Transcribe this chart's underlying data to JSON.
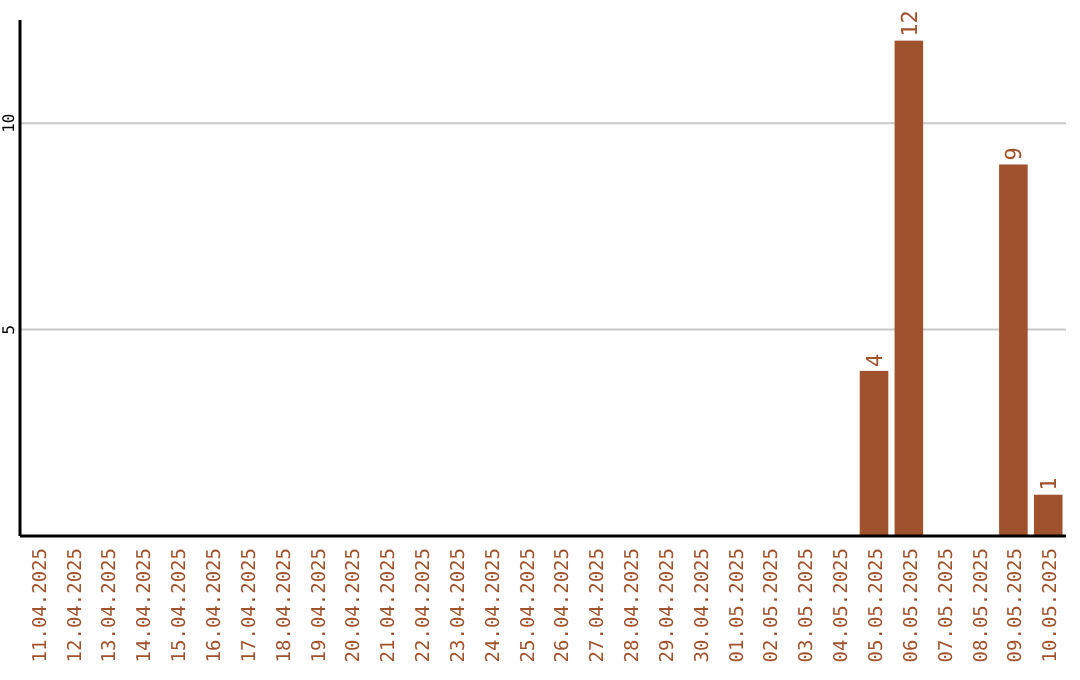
{
  "chart_data": {
    "type": "bar",
    "categories": [
      "11.04.2025",
      "12.04.2025",
      "13.04.2025",
      "14.04.2025",
      "15.04.2025",
      "16.04.2025",
      "17.04.2025",
      "18.04.2025",
      "19.04.2025",
      "20.04.2025",
      "21.04.2025",
      "22.04.2025",
      "23.04.2025",
      "24.04.2025",
      "25.04.2025",
      "26.04.2025",
      "27.04.2025",
      "28.04.2025",
      "29.04.2025",
      "30.04.2025",
      "01.05.2025",
      "02.05.2025",
      "03.05.2025",
      "04.05.2025",
      "05.05.2025",
      "06.05.2025",
      "07.05.2025",
      "08.05.2025",
      "09.05.2025",
      "10.05.2025"
    ],
    "values": [
      0,
      0,
      0,
      0,
      0,
      0,
      0,
      0,
      0,
      0,
      0,
      0,
      0,
      0,
      0,
      0,
      0,
      0,
      0,
      0,
      0,
      0,
      0,
      0,
      4,
      12,
      0,
      0,
      9,
      1
    ],
    "value_labels": [
      null,
      null,
      null,
      null,
      null,
      null,
      null,
      null,
      null,
      null,
      null,
      null,
      null,
      null,
      null,
      null,
      null,
      null,
      null,
      null,
      null,
      null,
      null,
      null,
      "4",
      "12",
      null,
      null,
      "9",
      "1"
    ],
    "color": "#a0522d",
    "ylim": [
      0,
      12.5
    ],
    "yticks": [
      5,
      10
    ],
    "grid": "y"
  }
}
